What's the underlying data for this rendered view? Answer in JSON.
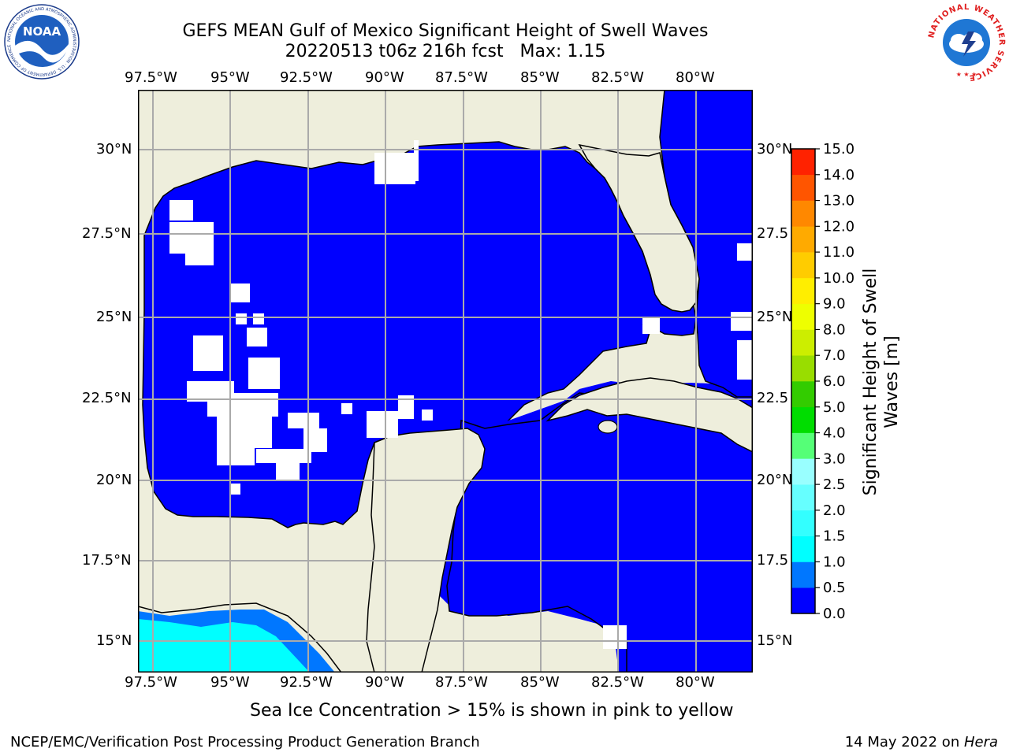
{
  "header": {
    "title_line1": "GEFS MEAN Gulf of Mexico Significant Height of Swell Waves",
    "title_line2": "20220513 t06z 216h fcst   Max: 1.15"
  },
  "logos": {
    "left": "NOAA",
    "left_ring": "NATIONAL OCEANIC AND ATMOSPHERIC ADMINISTRATION · U.S. DEPARTMENT OF COMMERCE",
    "right_ring": "NATIONAL WEATHER SERVICE"
  },
  "map": {
    "lon_ticks": [
      "97.5°W",
      "95°W",
      "92.5°W",
      "90°W",
      "87.5°W",
      "85°W",
      "82.5°W",
      "80°W"
    ],
    "lat_ticks_left": [
      "30°N",
      "27.5°N",
      "25°N",
      "22.5°N",
      "20°N",
      "17.5°N",
      "15°N"
    ],
    "lat_ticks_right": [
      "30°N",
      "27.5",
      "25°N",
      "22.5",
      "20°N",
      "17.5",
      "15°N"
    ],
    "colors": {
      "land": "#eeeedc",
      "ocean": "#0000ff",
      "cyan": "#00ffff",
      "gridline": "#aaaaaa",
      "coast": "#000000"
    }
  },
  "colorbar": {
    "label": "Significant Height of Swell Waves [m]",
    "ticks": [
      "0.0",
      "0.5",
      "1.0",
      "1.5",
      "2.0",
      "2.5",
      "3.0",
      "4.0",
      "5.0",
      "6.0",
      "7.0",
      "8.0",
      "9.0",
      "10.0",
      "11.0",
      "12.0",
      "13.0",
      "14.0",
      "15.0"
    ],
    "colors": [
      "#0000ff",
      "#0077ff",
      "#00ffff",
      "#33ffff",
      "#66ffff",
      "#99ffff",
      "#55ff77",
      "#00dd00",
      "#33cc00",
      "#99dd00",
      "#ccee00",
      "#eeff00",
      "#ffee00",
      "#ffcc00",
      "#ffaa00",
      "#ff8800",
      "#ff5500",
      "#ff2200"
    ]
  },
  "notes": {
    "sea_ice": "Sea Ice Concentration > 15% is shown in pink to yellow"
  },
  "footer": {
    "left": "NCEP/EMC/Verification Post Processing Product Generation Branch",
    "right_date": "14 May 2022 on ",
    "right_host": "Hera"
  }
}
